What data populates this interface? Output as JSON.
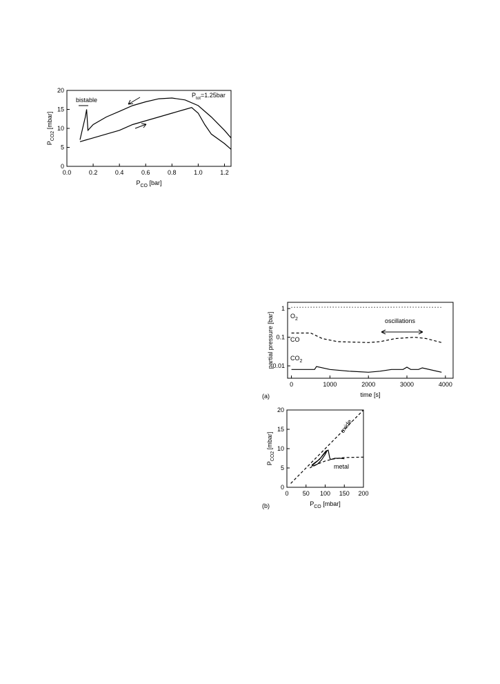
{
  "chart_data": [
    {
      "type": "line",
      "xlabel": {
        "text": "P",
        "sub": "CO",
        "rest": " [bar]"
      },
      "ylabel": {
        "text": "P",
        "sub": "CO2",
        "rest": " [mbar]"
      },
      "xlim": [
        0,
        1.25
      ],
      "xticks": [
        {
          "value": 0,
          "label": "0.0"
        },
        0.2,
        0.4,
        0.6,
        0.8,
        {
          "value": 1,
          "label": "1.0"
        },
        1.2
      ],
      "ylim": [
        0,
        20
      ],
      "yticks": [
        0,
        5,
        10,
        15,
        20
      ],
      "annotations": [
        "bistable",
        {
          "text": "P",
          "sub": "tot",
          "rest": "=1.25bar"
        }
      ],
      "series": [
        {
          "color": "#000000",
          "dash": "solid",
          "x": [
            0.1,
            0.15,
            0.2,
            0.3,
            0.4,
            0.5,
            0.6,
            0.7,
            0.8,
            0.9,
            0.95,
            1.0,
            1.05,
            1.1,
            1.2,
            1.25
          ],
          "y": [
            6.5,
            7,
            7.5,
            8.5,
            9.5,
            11,
            12,
            13,
            14,
            15,
            15.5,
            14,
            11,
            8.5,
            6,
            4.5
          ]
        },
        {
          "color": "#000000",
          "dash": "solid",
          "x": [
            1.25,
            1.2,
            1.1,
            1.0,
            0.9,
            0.8,
            0.7,
            0.6,
            0.5,
            0.4,
            0.3,
            0.2,
            0.16,
            0.15,
            0.14,
            0.12,
            0.1
          ],
          "y": [
            7.5,
            9.5,
            13,
            16,
            17.5,
            18,
            17.8,
            17,
            16,
            14.5,
            13,
            11,
            9.5,
            15,
            13,
            10,
            7
          ]
        }
      ]
    },
    {
      "type": "line",
      "yscale": "log",
      "panel": "(a)",
      "xlabel": "time [s]",
      "ylabel": "partial pressure [bar]",
      "xlim": [
        -100,
        4200
      ],
      "xticks": [
        0,
        1000,
        2000,
        3000,
        4000
      ],
      "ylim": [
        0.0037,
        1.65
      ],
      "yticks": [
        1,
        0.1,
        0.01
      ],
      "annotations": [
        "oscillations"
      ],
      "series": [
        {
          "name": "O2",
          "color": "#000000",
          "dash": "dotted",
          "x": [
            0,
            1000,
            2000,
            3000,
            3900
          ],
          "y": [
            1.1,
            1.12,
            1.1,
            1.12,
            1.1
          ]
        },
        {
          "name": "CO",
          "color": "#000000",
          "dash": "dashed",
          "x": [
            0,
            500,
            800,
            1200,
            2000,
            2300,
            2700,
            3200,
            3500,
            3900
          ],
          "y": [
            0.14,
            0.14,
            0.09,
            0.07,
            0.065,
            0.07,
            0.09,
            0.1,
            0.09,
            0.065
          ]
        },
        {
          "name": "CO2",
          "color": "#000000",
          "dash": "solid",
          "x": [
            0,
            600,
            650,
            1000,
            1500,
            2000,
            2300,
            2600,
            2900,
            3000,
            3100,
            3300,
            3400,
            3900
          ],
          "y": [
            0.0075,
            0.0075,
            0.0095,
            0.0075,
            0.0065,
            0.006,
            0.0065,
            0.0075,
            0.0075,
            0.009,
            0.0075,
            0.0075,
            0.0085,
            0.006
          ]
        }
      ]
    },
    {
      "type": "line",
      "panel": "(b)",
      "xlabel": {
        "text": "P",
        "sub": "CO",
        "rest": " [mbar]"
      },
      "ylabel": {
        "text": "P",
        "sub": "CO2",
        "rest": " [mbar]"
      },
      "xlim": [
        0,
        200
      ],
      "xticks": [
        0,
        50,
        100,
        150,
        200
      ],
      "ylim": [
        0,
        20
      ],
      "yticks": [
        0,
        5,
        10,
        15,
        20
      ],
      "series": [
        {
          "name": "oxide",
          "color": "#000000",
          "dash": "dashed",
          "x": [
            10,
            200
          ],
          "y": [
            1,
            20
          ]
        },
        {
          "name": "metal",
          "color": "#000000",
          "dash": "dashed",
          "x": [
            60,
            70,
            80,
            100,
            120,
            150,
            200
          ],
          "y": [
            5,
            5.6,
            6,
            6.8,
            7.3,
            7.7,
            7.8
          ]
        },
        {
          "color": "#000000",
          "dash": "solid",
          "x": [
            65,
            70,
            80,
            90,
            100,
            105,
            100,
            90,
            80,
            70,
            66,
            72,
            85,
            95,
            102,
            108,
            110,
            112,
            115,
            125,
            140,
            150
          ],
          "y": [
            5.5,
            6,
            6.8,
            7.8,
            9,
            9.5,
            8.5,
            7,
            6,
            5.5,
            5.8,
            6.3,
            7.2,
            8.5,
            9.4,
            9.6,
            8.5,
            7.5,
            7.2,
            7.5,
            7.5,
            7.4
          ]
        }
      ]
    }
  ]
}
